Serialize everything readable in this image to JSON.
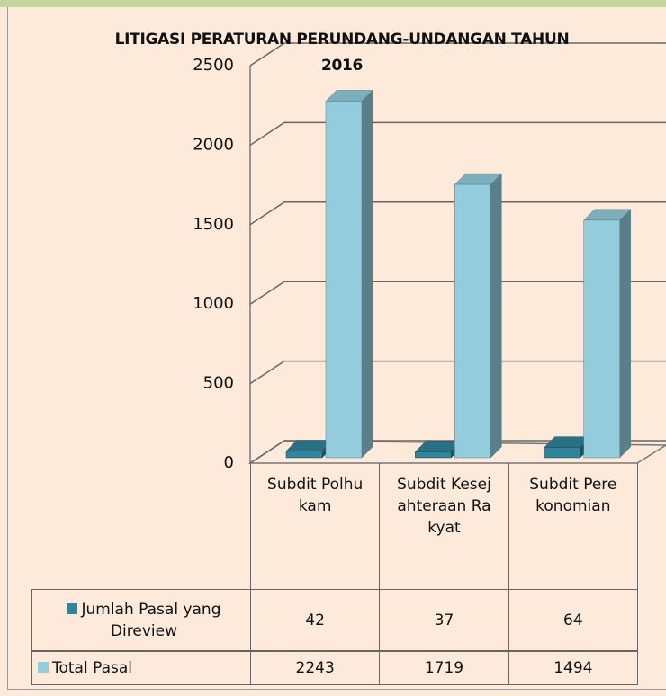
{
  "chart_data": {
    "type": "bar3d",
    "title": "LITIGASI PERATURAN PERUNDANG-UNDANGAN TAHUN 2016",
    "categories": [
      "Subdit Polhukam",
      "Subdit Kesejahteraan Rakyat",
      "Subdit Perekonomian"
    ],
    "series": [
      {
        "name": "Jumlah Pasal yang Direview",
        "color": "#31849b",
        "values": [
          42,
          37,
          64
        ]
      },
      {
        "name": "Total Pasal",
        "color": "#93cddd",
        "values": [
          2243,
          1719,
          1494
        ]
      }
    ],
    "ylim": [
      0,
      2500
    ],
    "yticks": [
      0,
      500,
      1000,
      1500,
      2000,
      2500
    ],
    "grid": true,
    "data_table": true
  }
}
